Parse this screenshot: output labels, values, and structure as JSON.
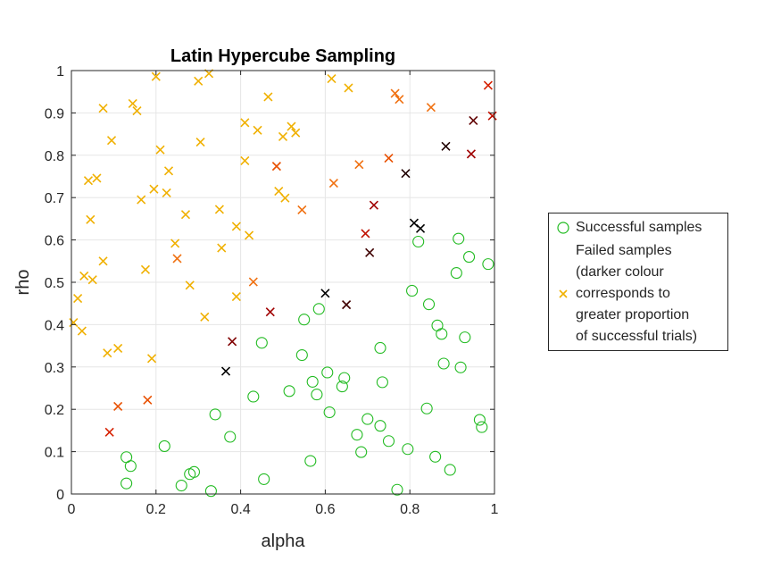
{
  "chart_data": {
    "type": "scatter",
    "title": "Latin Hypercube Sampling",
    "xlabel": "alpha",
    "ylabel": "rho",
    "xlim": [
      0,
      1
    ],
    "ylim": [
      0,
      1
    ],
    "grid": true,
    "xticks": [
      "0",
      "0.2",
      "0.4",
      "0.6",
      "0.8",
      "1"
    ],
    "yticks": [
      "0",
      "0.1",
      "0.2",
      "0.3",
      "0.4",
      "0.5",
      "0.6",
      "0.7",
      "0.8",
      "0.9",
      "1"
    ],
    "legend_position": "outside-right",
    "series": [
      {
        "name": "Successful samples",
        "marker": "circle",
        "color": "#22bb22",
        "points": [
          [
            0.13,
            0.025
          ],
          [
            0.13,
            0.087
          ],
          [
            0.14,
            0.066
          ],
          [
            0.22,
            0.113
          ],
          [
            0.26,
            0.02
          ],
          [
            0.28,
            0.047
          ],
          [
            0.29,
            0.052
          ],
          [
            0.33,
            0.007
          ],
          [
            0.34,
            0.188
          ],
          [
            0.375,
            0.135
          ],
          [
            0.43,
            0.23
          ],
          [
            0.45,
            0.357
          ],
          [
            0.455,
            0.035
          ],
          [
            0.515,
            0.243
          ],
          [
            0.545,
            0.328
          ],
          [
            0.55,
            0.412
          ],
          [
            0.565,
            0.078
          ],
          [
            0.57,
            0.265
          ],
          [
            0.58,
            0.235
          ],
          [
            0.585,
            0.437
          ],
          [
            0.605,
            0.287
          ],
          [
            0.61,
            0.193
          ],
          [
            0.64,
            0.254
          ],
          [
            0.645,
            0.274
          ],
          [
            0.675,
            0.14
          ],
          [
            0.685,
            0.099
          ],
          [
            0.7,
            0.177
          ],
          [
            0.73,
            0.161
          ],
          [
            0.73,
            0.345
          ],
          [
            0.735,
            0.264
          ],
          [
            0.75,
            0.125
          ],
          [
            0.77,
            0.01
          ],
          [
            0.795,
            0.106
          ],
          [
            0.805,
            0.48
          ],
          [
            0.82,
            0.596
          ],
          [
            0.84,
            0.202
          ],
          [
            0.845,
            0.448
          ],
          [
            0.86,
            0.088
          ],
          [
            0.865,
            0.398
          ],
          [
            0.875,
            0.378
          ],
          [
            0.88,
            0.308
          ],
          [
            0.895,
            0.057
          ],
          [
            0.91,
            0.522
          ],
          [
            0.915,
            0.603
          ],
          [
            0.92,
            0.299
          ],
          [
            0.93,
            0.37
          ],
          [
            0.94,
            0.56
          ],
          [
            0.965,
            0.175
          ],
          [
            0.97,
            0.158
          ],
          [
            0.985,
            0.543
          ]
        ]
      },
      {
        "name": "Failed samples\n(darker colour\ncorresponds to\ngreater proportion\nof successful trials)",
        "marker": "x",
        "points": [
          {
            "x": 0.005,
            "y": 0.405,
            "c": "#f0b000"
          },
          {
            "x": 0.015,
            "y": 0.462,
            "c": "#f0b000"
          },
          {
            "x": 0.025,
            "y": 0.385,
            "c": "#f0b000"
          },
          {
            "x": 0.03,
            "y": 0.515,
            "c": "#f0b000"
          },
          {
            "x": 0.04,
            "y": 0.74,
            "c": "#f0b000"
          },
          {
            "x": 0.045,
            "y": 0.648,
            "c": "#f0b000"
          },
          {
            "x": 0.05,
            "y": 0.506,
            "c": "#f0b000"
          },
          {
            "x": 0.06,
            "y": 0.746,
            "c": "#f0b000"
          },
          {
            "x": 0.075,
            "y": 0.55,
            "c": "#f0b000"
          },
          {
            "x": 0.075,
            "y": 0.911,
            "c": "#f0b000"
          },
          {
            "x": 0.085,
            "y": 0.333,
            "c": "#f0b000"
          },
          {
            "x": 0.09,
            "y": 0.146,
            "c": "#d62000"
          },
          {
            "x": 0.095,
            "y": 0.835,
            "c": "#f0b000"
          },
          {
            "x": 0.11,
            "y": 0.344,
            "c": "#f0b000"
          },
          {
            "x": 0.11,
            "y": 0.207,
            "c": "#e85000"
          },
          {
            "x": 0.145,
            "y": 0.922,
            "c": "#f0b000"
          },
          {
            "x": 0.155,
            "y": 0.905,
            "c": "#f0b000"
          },
          {
            "x": 0.165,
            "y": 0.695,
            "c": "#f0b000"
          },
          {
            "x": 0.175,
            "y": 0.53,
            "c": "#f0b000"
          },
          {
            "x": 0.18,
            "y": 0.222,
            "c": "#e85000"
          },
          {
            "x": 0.19,
            "y": 0.32,
            "c": "#f0b000"
          },
          {
            "x": 0.195,
            "y": 0.72,
            "c": "#f0b000"
          },
          {
            "x": 0.2,
            "y": 0.986,
            "c": "#f0b000"
          },
          {
            "x": 0.21,
            "y": 0.813,
            "c": "#f0b000"
          },
          {
            "x": 0.225,
            "y": 0.711,
            "c": "#f0b000"
          },
          {
            "x": 0.23,
            "y": 0.763,
            "c": "#f0b000"
          },
          {
            "x": 0.245,
            "y": 0.592,
            "c": "#f0b000"
          },
          {
            "x": 0.25,
            "y": 0.556,
            "c": "#f07010"
          },
          {
            "x": 0.27,
            "y": 0.66,
            "c": "#f0b000"
          },
          {
            "x": 0.28,
            "y": 0.493,
            "c": "#f0b000"
          },
          {
            "x": 0.3,
            "y": 0.975,
            "c": "#f0b000"
          },
          {
            "x": 0.305,
            "y": 0.831,
            "c": "#f0b000"
          },
          {
            "x": 0.315,
            "y": 0.418,
            "c": "#f0b000"
          },
          {
            "x": 0.325,
            "y": 0.993,
            "c": "#f0b000"
          },
          {
            "x": 0.35,
            "y": 0.672,
            "c": "#f0b000"
          },
          {
            "x": 0.355,
            "y": 0.581,
            "c": "#f0b000"
          },
          {
            "x": 0.365,
            "y": 0.29,
            "c": "#000000"
          },
          {
            "x": 0.38,
            "y": 0.36,
            "c": "#800000"
          },
          {
            "x": 0.39,
            "y": 0.632,
            "c": "#f0b000"
          },
          {
            "x": 0.39,
            "y": 0.466,
            "c": "#f0b000"
          },
          {
            "x": 0.41,
            "y": 0.877,
            "c": "#f0b000"
          },
          {
            "x": 0.41,
            "y": 0.787,
            "c": "#f0b000"
          },
          {
            "x": 0.42,
            "y": 0.611,
            "c": "#f0b000"
          },
          {
            "x": 0.43,
            "y": 0.501,
            "c": "#f07010"
          },
          {
            "x": 0.44,
            "y": 0.859,
            "c": "#f0b000"
          },
          {
            "x": 0.465,
            "y": 0.938,
            "c": "#f0b000"
          },
          {
            "x": 0.47,
            "y": 0.43,
            "c": "#a00000"
          },
          {
            "x": 0.485,
            "y": 0.774,
            "c": "#e85000"
          },
          {
            "x": 0.49,
            "y": 0.715,
            "c": "#f0b000"
          },
          {
            "x": 0.5,
            "y": 0.844,
            "c": "#f0b000"
          },
          {
            "x": 0.505,
            "y": 0.699,
            "c": "#f0b000"
          },
          {
            "x": 0.52,
            "y": 0.868,
            "c": "#f0b000"
          },
          {
            "x": 0.53,
            "y": 0.853,
            "c": "#f0b000"
          },
          {
            "x": 0.545,
            "y": 0.671,
            "c": "#f07010"
          },
          {
            "x": 0.6,
            "y": 0.474,
            "c": "#000000"
          },
          {
            "x": 0.615,
            "y": 0.981,
            "c": "#f0b000"
          },
          {
            "x": 0.62,
            "y": 0.734,
            "c": "#f07010"
          },
          {
            "x": 0.65,
            "y": 0.447,
            "c": "#400000"
          },
          {
            "x": 0.655,
            "y": 0.959,
            "c": "#f0b000"
          },
          {
            "x": 0.68,
            "y": 0.778,
            "c": "#f07010"
          },
          {
            "x": 0.695,
            "y": 0.615,
            "c": "#c01000"
          },
          {
            "x": 0.705,
            "y": 0.57,
            "c": "#400000"
          },
          {
            "x": 0.715,
            "y": 0.682,
            "c": "#a00000"
          },
          {
            "x": 0.75,
            "y": 0.793,
            "c": "#e85000"
          },
          {
            "x": 0.765,
            "y": 0.946,
            "c": "#f07010"
          },
          {
            "x": 0.775,
            "y": 0.932,
            "c": "#f07010"
          },
          {
            "x": 0.79,
            "y": 0.757,
            "c": "#200000"
          },
          {
            "x": 0.81,
            "y": 0.64,
            "c": "#000000"
          },
          {
            "x": 0.825,
            "y": 0.627,
            "c": "#000000"
          },
          {
            "x": 0.85,
            "y": 0.913,
            "c": "#f07010"
          },
          {
            "x": 0.885,
            "y": 0.821,
            "c": "#200000"
          },
          {
            "x": 0.945,
            "y": 0.803,
            "c": "#a00000"
          },
          {
            "x": 0.95,
            "y": 0.882,
            "c": "#600000"
          },
          {
            "x": 0.985,
            "y": 0.965,
            "c": "#d62000"
          },
          {
            "x": 0.995,
            "y": 0.893,
            "c": "#c01000"
          }
        ]
      }
    ]
  }
}
